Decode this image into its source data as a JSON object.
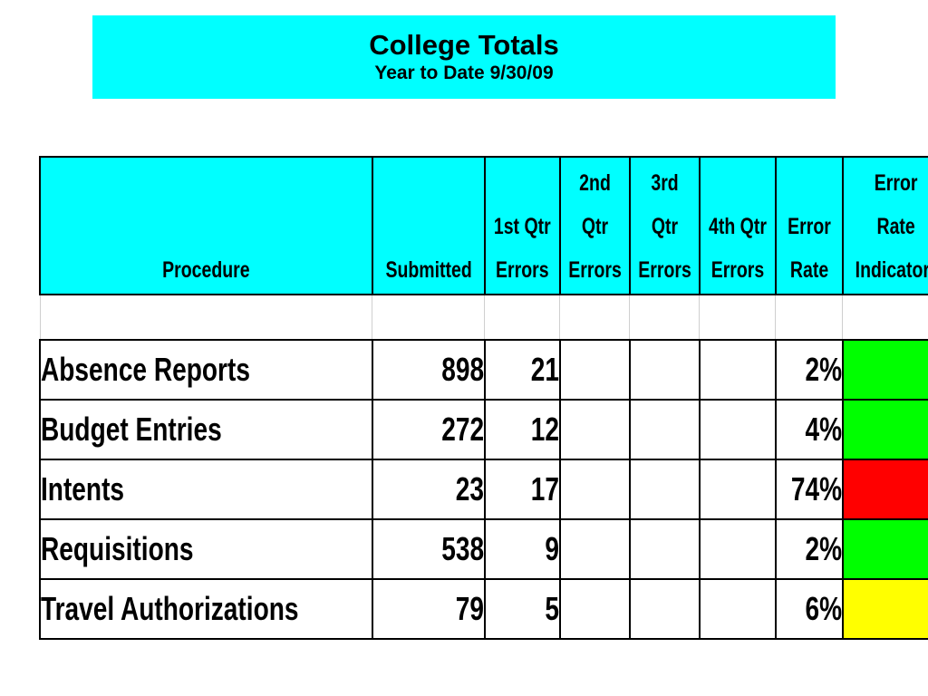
{
  "title": {
    "main": "College Totals",
    "sub": "Year to Date 9/30/09"
  },
  "table": {
    "columns": [
      {
        "lines": [
          "Procedure"
        ]
      },
      {
        "lines": [
          "Submitted"
        ]
      },
      {
        "lines": [
          "1st Qtr",
          "Errors"
        ]
      },
      {
        "lines": [
          "2nd",
          "Qtr",
          "Errors"
        ]
      },
      {
        "lines": [
          "3rd",
          "Qtr",
          "Errors"
        ]
      },
      {
        "lines": [
          "4th Qtr",
          "Errors"
        ]
      },
      {
        "lines": [
          "Error",
          "Rate"
        ]
      },
      {
        "lines": [
          "Error",
          "Rate",
          "Indicator*"
        ]
      }
    ],
    "rows": [
      {
        "procedure": "Absence Reports",
        "submitted": "898",
        "q1": "21",
        "q2": "",
        "q3": "",
        "q4": "",
        "rate": "2%",
        "indicator": "green"
      },
      {
        "procedure": "Budget Entries",
        "submitted": "272",
        "q1": "12",
        "q2": "",
        "q3": "",
        "q4": "",
        "rate": "4%",
        "indicator": "green"
      },
      {
        "procedure": "Intents",
        "submitted": "23",
        "q1": "17",
        "q2": "",
        "q3": "",
        "q4": "",
        "rate": "74%",
        "indicator": "red"
      },
      {
        "procedure": "Requisitions",
        "submitted": "538",
        "q1": "9",
        "q2": "",
        "q3": "",
        "q4": "",
        "rate": "2%",
        "indicator": "green"
      },
      {
        "procedure": "Travel Authorizations",
        "submitted": "79",
        "q1": "5",
        "q2": "",
        "q3": "",
        "q4": "",
        "rate": "6%",
        "indicator": "yellow"
      }
    ]
  },
  "indicator_colors": {
    "green": "#00ff00",
    "red": "#ff0000",
    "yellow": "#ffff00"
  }
}
